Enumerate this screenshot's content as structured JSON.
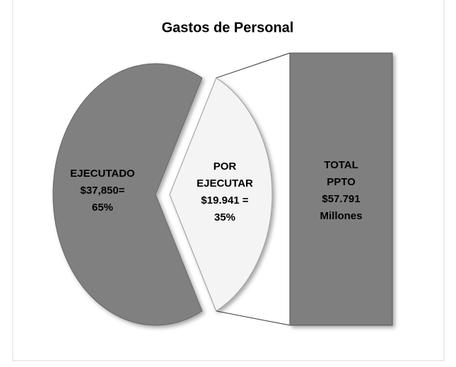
{
  "chart_data": {
    "type": "pie-of-bar",
    "title": "Gastos de Personal",
    "categories": [
      "EJECUTADO",
      "POR EJECUTAR"
    ],
    "values": [
      65,
      35
    ],
    "value_labels": [
      [
        "$37,850=",
        "65%"
      ],
      [
        "$19.941 =",
        "35%"
      ]
    ],
    "colors": [
      "#808080",
      "#f4f4f4"
    ],
    "bar_label": [
      "TOTAL",
      "PPTO",
      "$57.791",
      "Millones"
    ],
    "bar_color": "#7f7f7f"
  }
}
